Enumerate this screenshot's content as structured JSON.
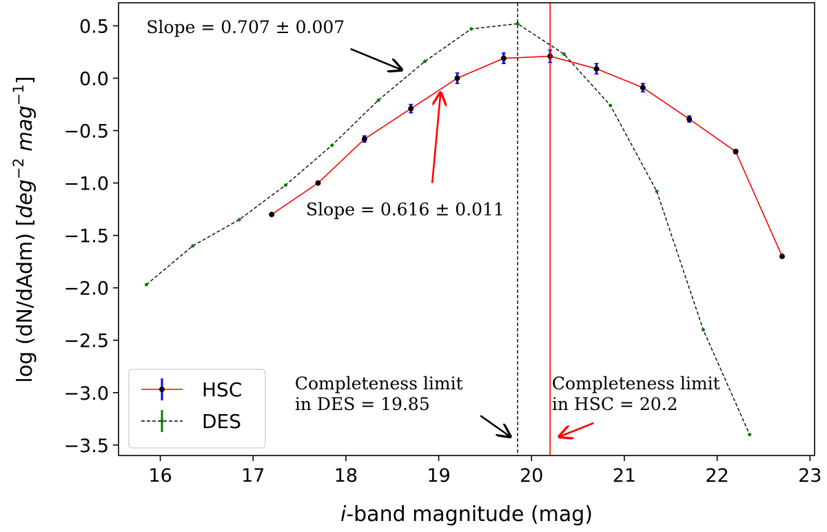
{
  "chart_data": {
    "type": "line",
    "title": "",
    "xlabel": "i-band magnitude (mag)",
    "xlabel_italic_part": "i",
    "xlabel_rest": "-band magnitude (mag)",
    "ylabel": "log (dN/dAdm) [deg⁻² mag⁻¹]",
    "ylabel_prefix": "log (dN/dAdm) [",
    "ylabel_deg": "deg",
    "ylabel_deg_exp": "−2",
    "ylabel_mag": "mag",
    "ylabel_mag_exp": "−1",
    "ylabel_suffix": "]",
    "xlim": [
      15.55,
      23.05
    ],
    "ylim": [
      -3.6,
      0.72
    ],
    "xticks": [
      16,
      17,
      18,
      19,
      20,
      21,
      22,
      23
    ],
    "xtick_labels": [
      "16",
      "17",
      "18",
      "19",
      "20",
      "21",
      "22",
      "23"
    ],
    "yticks": [
      0.5,
      0.0,
      -0.5,
      -1.0,
      -1.5,
      -2.0,
      -2.5,
      -3.0,
      -3.5
    ],
    "ytick_labels": [
      "0.5",
      "0.0",
      "−0.5",
      "−1.0",
      "−1.5",
      "−2.0",
      "−2.5",
      "−3.0",
      "−3.5"
    ],
    "grid": false,
    "legend_position": "bottom-left",
    "series": [
      {
        "name": "HSC",
        "color": "#ff0000",
        "errorbar_color": "#0000ff",
        "marker_color": "#000000",
        "linestyle": "solid",
        "x": [
          17.2,
          17.7,
          18.2,
          18.7,
          19.2,
          19.7,
          20.2,
          20.7,
          21.2,
          21.7,
          22.2,
          22.7
        ],
        "y": [
          -1.3,
          -1.0,
          -0.58,
          -0.29,
          0.0,
          0.19,
          0.21,
          0.09,
          -0.09,
          -0.39,
          -0.7,
          -1.7
        ],
        "yerr": [
          0.0,
          0.0,
          0.03,
          0.04,
          0.05,
          0.05,
          0.06,
          0.05,
          0.04,
          0.03,
          0.02,
          0.0
        ]
      },
      {
        "name": "DES",
        "color": "#000000",
        "errorbar_color": "#007f00",
        "marker_color": "#007f00",
        "linestyle": "dashed",
        "x": [
          15.85,
          16.35,
          16.85,
          17.35,
          17.85,
          18.35,
          18.85,
          19.35,
          19.85,
          20.35,
          20.85,
          21.35,
          21.85,
          22.35
        ],
        "y": [
          -1.97,
          -1.6,
          -1.35,
          -1.02,
          -0.64,
          -0.21,
          0.16,
          0.47,
          0.52,
          0.23,
          -0.26,
          -1.08,
          -2.4,
          -3.4
        ],
        "yerr": [
          0.006,
          0.006,
          0.006,
          0.006,
          0.006,
          0.006,
          0.006,
          0.01,
          0.01,
          0.01,
          0.01,
          0.01,
          0.01,
          0.01
        ]
      }
    ],
    "vlines": [
      {
        "name": "DES completeness",
        "x": 19.85,
        "color": "#000000",
        "linestyle": "dashed"
      },
      {
        "name": "HSC completeness",
        "x": 20.2,
        "color": "#ff0000",
        "linestyle": "solid"
      }
    ],
    "annotations": [
      {
        "text": "Slope = 0.707 ± 0.007",
        "text_x": 15.85,
        "text_y": 0.43,
        "arrow_from": [
          18.05,
          0.28
        ],
        "arrow_to": [
          18.6,
          0.08
        ],
        "color": "#000000"
      },
      {
        "text": "Slope = 0.616 ± 0.011",
        "text_x": 17.57,
        "text_y": -1.31,
        "arrow_from": [
          18.93,
          -1.0
        ],
        "arrow_to": [
          19.02,
          -0.14
        ],
        "color": "#ff0000"
      }
    ],
    "limit_annotations": [
      {
        "line1": "Completeness limit",
        "line2": "in DES = 19.85",
        "text_x": 17.45,
        "text_y": -2.97,
        "arrow_from": [
          19.45,
          -3.22
        ],
        "arrow_to": [
          19.77,
          -3.42
        ],
        "color": "#000000"
      },
      {
        "line1": "Completeness limit",
        "line2": "in HSC = 20.2",
        "text_x": 20.22,
        "text_y": -2.97,
        "arrow_from": [
          20.67,
          -3.29
        ],
        "arrow_to": [
          20.3,
          -3.42
        ],
        "color": "#ff0000"
      }
    ]
  }
}
